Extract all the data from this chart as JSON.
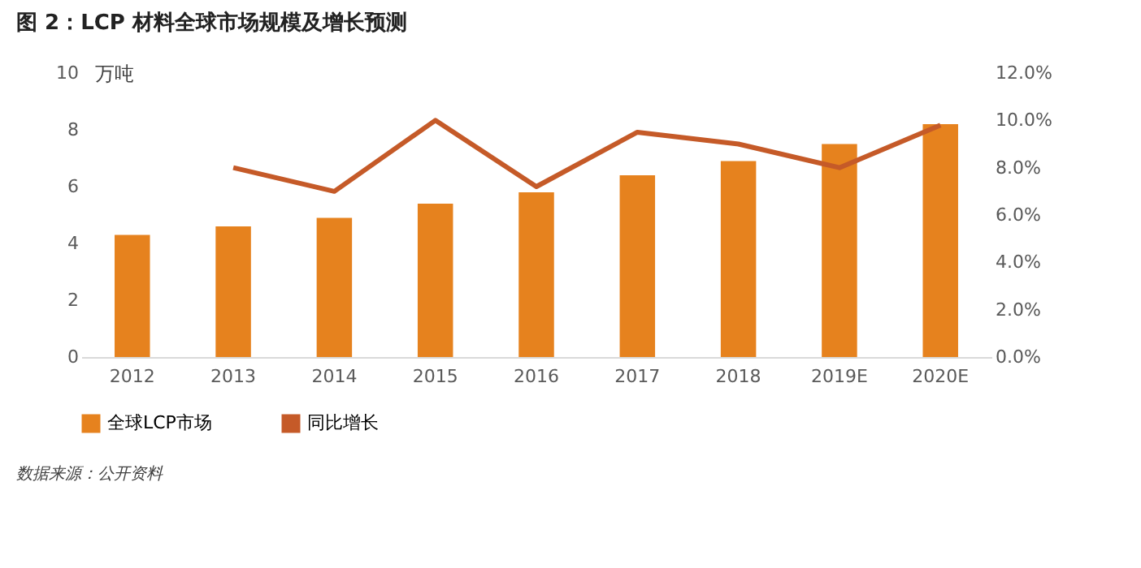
{
  "chart_data": {
    "type": "bar",
    "title": "图 2：LCP 材料全球市场规模及增长预测",
    "categories": [
      "2012",
      "2013",
      "2014",
      "2015",
      "2016",
      "2017",
      "2018",
      "2019E",
      "2020E"
    ],
    "series": [
      {
        "name": "全球LCP市场",
        "color": "#e6821e",
        "values": [
          4.3,
          4.6,
          4.9,
          5.4,
          5.8,
          6.4,
          6.9,
          7.5,
          8.2
        ]
      },
      {
        "name": "同比增长",
        "type": "line",
        "axis": "y2",
        "color": "#c55a28",
        "values": [
          null,
          8.0,
          7.0,
          10.0,
          7.2,
          9.5,
          9.0,
          8.0,
          9.8
        ]
      }
    ],
    "ylabel": "万吨",
    "ylim": [
      0,
      10
    ],
    "yticks": [
      0,
      2,
      4,
      6,
      8,
      10
    ],
    "y2lim": [
      0,
      12
    ],
    "y2ticks": [
      {
        "value": 0,
        "label": "0.0%"
      },
      {
        "value": 2,
        "label": "2.0%"
      },
      {
        "value": 4,
        "label": "4.0%"
      },
      {
        "value": 6,
        "label": "6.0%"
      },
      {
        "value": 8,
        "label": "8.0%"
      },
      {
        "value": 10,
        "label": "10.0%"
      },
      {
        "value": 12,
        "label": "12.0%"
      }
    ],
    "grid": false,
    "legend": "bottom",
    "marker": "none",
    "line_style": "solid",
    "annotations": [
      "数据来源：公开资料"
    ]
  }
}
